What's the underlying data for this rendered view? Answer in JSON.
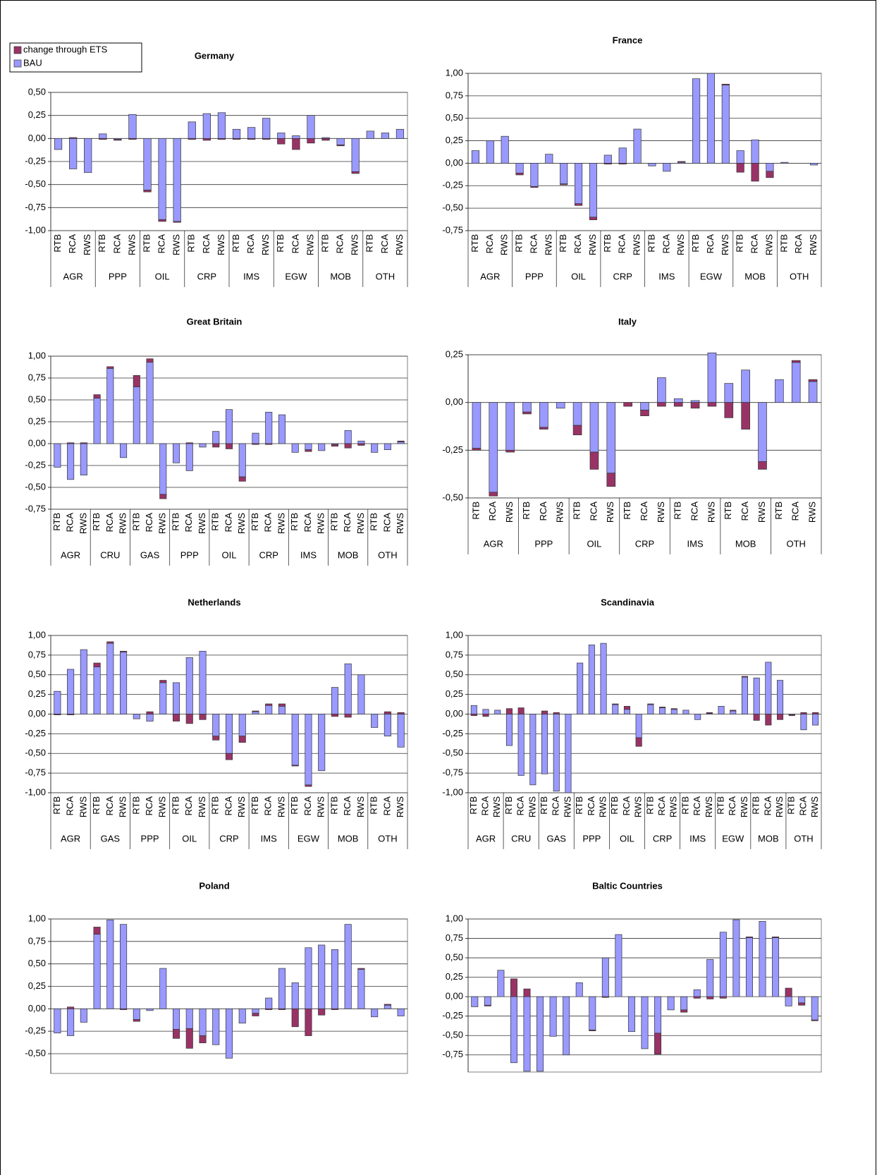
{
  "chart_data": [
    {
      "type": "bar",
      "stacked": true,
      "title": "Germany",
      "categories": [
        "RTB",
        "RCA",
        "RWS",
        "RTB",
        "RCA",
        "RWS",
        "RTB",
        "RCA",
        "RWS",
        "RTB",
        "RCA",
        "RWS",
        "RTB",
        "RCA",
        "RWS",
        "RTB",
        "RCA",
        "RWS",
        "RTB",
        "RCA",
        "RWS",
        "RTB",
        "RCA",
        "RWS"
      ],
      "groups": [
        "AGR",
        "PPP",
        "OIL",
        "CRP",
        "IMS",
        "EGW",
        "MOB",
        "OTH"
      ],
      "series": [
        {
          "name": "BAU",
          "color": "#9999ff",
          "values": [
            -0.12,
            -0.33,
            -0.37,
            0.05,
            -0.01,
            0.26,
            -0.56,
            -0.88,
            -0.9,
            0.18,
            0.27,
            0.28,
            0.1,
            0.12,
            0.22,
            0.06,
            0.03,
            0.25,
            0.01,
            -0.07,
            -0.36,
            0.08,
            0.06,
            0.1
          ]
        },
        {
          "name": "change through ETS",
          "color": "#993366",
          "values": [
            0,
            0.01,
            0,
            -0.01,
            -0.01,
            -0.01,
            -0.02,
            -0.02,
            -0.01,
            -0.01,
            -0.02,
            -0.01,
            -0.01,
            -0.01,
            -0.01,
            -0.06,
            -0.12,
            -0.05,
            -0.02,
            -0.01,
            -0.02,
            0,
            0,
            0
          ]
        }
      ],
      "ylim": [
        -1,
        0.5
      ],
      "yticks": [
        {
          "value": 0.5,
          "label": "0,50"
        },
        {
          "value": 0.25,
          "label": "0,25"
        },
        {
          "value": 0,
          "label": "0,00"
        },
        {
          "value": -0.25,
          "label": "-0,25"
        },
        {
          "value": -0.5,
          "label": "-0,50"
        },
        {
          "value": -0.75,
          "label": "-0,75"
        },
        {
          "value": -1,
          "label": "-1,00"
        }
      ],
      "grid": true,
      "legend": "top-left"
    },
    {
      "type": "bar",
      "stacked": true,
      "title": "France",
      "categories": [
        "RTB",
        "RCA",
        "RWS",
        "RTB",
        "RCA",
        "RWS",
        "RTB",
        "RCA",
        "RWS",
        "RTB",
        "RCA",
        "RWS",
        "RTB",
        "RCA",
        "RWS",
        "RTB",
        "RCA",
        "RWS",
        "RTB",
        "RCA",
        "RWS",
        "RTB",
        "RCA",
        "RWS"
      ],
      "groups": [
        "AGR",
        "PPP",
        "OIL",
        "CRP",
        "IMS",
        "EGW",
        "MOB",
        "OTH"
      ],
      "series": [
        {
          "color": "#9999ff",
          "values": [
            0.14,
            0.25,
            0.3,
            -0.11,
            -0.26,
            0.1,
            -0.23,
            -0.45,
            -0.6,
            0.09,
            0.17,
            0.38,
            -0.03,
            -0.09,
            0.01,
            0.94,
            1.0,
            0.87,
            0.14,
            0.26,
            -0.09,
            0.01,
            0.0,
            -0.02
          ]
        },
        {
          "color": "#993366",
          "values": [
            0,
            0,
            0,
            -0.02,
            -0.01,
            0,
            -0.01,
            -0.02,
            -0.03,
            -0.01,
            -0.01,
            0,
            0,
            0,
            0.01,
            0,
            0,
            0.01,
            -0.1,
            -0.2,
            -0.07,
            0,
            0,
            0
          ]
        }
      ],
      "ylim": [
        -0.75,
        1
      ],
      "yticks": [
        {
          "value": 1,
          "label": "1,00"
        },
        {
          "value": 0.75,
          "label": "0,75"
        },
        {
          "value": 0.5,
          "label": "0,50"
        },
        {
          "value": 0.25,
          "label": "0,25"
        },
        {
          "value": 0,
          "label": "0,00"
        },
        {
          "value": -0.25,
          "label": "-0,25"
        },
        {
          "value": -0.5,
          "label": "-0,50"
        },
        {
          "value": -0.75,
          "label": "-0,75"
        }
      ],
      "grid": true
    },
    {
      "type": "bar",
      "stacked": true,
      "title": "Great Britain",
      "categories": [
        "RTB",
        "RCA",
        "RWS",
        "RTB",
        "RCA",
        "RWS",
        "RTB",
        "RCA",
        "RWS",
        "RTB",
        "RCA",
        "RWS",
        "RTB",
        "RCA",
        "RWS",
        "RTB",
        "RCA",
        "RWS",
        "RTB",
        "RCA",
        "RWS",
        "RTB",
        "RCA",
        "RWS",
        "RTB",
        "RCA",
        "RWS"
      ],
      "groups": [
        "AGR",
        "CRU",
        "GAS",
        "PPP",
        "OIL",
        "CRP",
        "IMS",
        "MOB",
        "OTH"
      ],
      "series": [
        {
          "color": "#9999ff",
          "values": [
            -0.27,
            -0.41,
            -0.36,
            0.52,
            0.86,
            -0.16,
            0.65,
            0.93,
            -0.58,
            -0.22,
            -0.31,
            -0.04,
            0.14,
            0.39,
            -0.38,
            0.12,
            0.36,
            0.33,
            -0.1,
            -0.07,
            -0.08,
            -0.01,
            0.15,
            0.03,
            -0.1,
            -0.07,
            0.02
          ]
        },
        {
          "color": "#993366",
          "values": [
            0,
            0.01,
            0.01,
            0.04,
            0.02,
            0,
            0.13,
            0.04,
            -0.05,
            0,
            0.01,
            0,
            -0.04,
            -0.06,
            -0.05,
            -0.01,
            -0.01,
            0,
            0,
            -0.02,
            0,
            -0.02,
            -0.05,
            -0.02,
            0,
            0,
            0.01
          ]
        }
      ],
      "ylim": [
        -0.75,
        1
      ],
      "yticks": [
        {
          "value": 1,
          "label": "1,00"
        },
        {
          "value": 0.75,
          "label": "0,75"
        },
        {
          "value": 0.5,
          "label": "0,50"
        },
        {
          "value": 0.25,
          "label": "0,25"
        },
        {
          "value": 0,
          "label": "0,00"
        },
        {
          "value": -0.25,
          "label": "-0,25"
        },
        {
          "value": -0.5,
          "label": "-0,50"
        },
        {
          "value": -0.75,
          "label": "-0,75"
        }
      ],
      "grid": true
    },
    {
      "type": "bar",
      "stacked": true,
      "title": "Italy",
      "categories": [
        "RTB",
        "RCA",
        "RWS",
        "RTB",
        "RCA",
        "RWS",
        "RTB",
        "RCA",
        "RWS",
        "RTB",
        "RCA",
        "RWS",
        "RTB",
        "RCA",
        "RWS",
        "RTB",
        "RCA",
        "RWS",
        "RTB",
        "RCA",
        "RWS"
      ],
      "groups": [
        "AGR",
        "PPP",
        "OIL",
        "CRP",
        "IMS",
        "MOB",
        "OTH"
      ],
      "series": [
        {
          "color": "#9999ff",
          "values": [
            -0.24,
            -0.47,
            -0.25,
            -0.05,
            -0.13,
            -0.03,
            -0.12,
            -0.26,
            -0.37,
            0.0,
            -0.04,
            0.13,
            0.02,
            0.01,
            0.26,
            0.1,
            0.17,
            -0.31,
            0.12,
            0.21,
            0.11
          ]
        },
        {
          "color": "#993366",
          "values": [
            -0.01,
            -0.02,
            -0.01,
            -0.01,
            -0.01,
            0,
            -0.05,
            -0.09,
            -0.07,
            -0.02,
            -0.03,
            -0.02,
            -0.02,
            -0.03,
            -0.02,
            -0.08,
            -0.14,
            -0.04,
            0,
            0.01,
            0.01
          ]
        }
      ],
      "ylim": [
        -0.5,
        0.25
      ],
      "yticks": [
        {
          "value": 0.25,
          "label": "0,25"
        },
        {
          "value": 0,
          "label": "0,00"
        },
        {
          "value": -0.25,
          "label": "-0,25"
        },
        {
          "value": -0.5,
          "label": "-0,50"
        }
      ],
      "grid": true
    },
    {
      "type": "bar",
      "stacked": true,
      "title": "Netherlands",
      "categories": [
        "RTB",
        "RCA",
        "RWS",
        "RTB",
        "RCA",
        "RWS",
        "RTB",
        "RCA",
        "RWS",
        "RTB",
        "RCA",
        "RWS",
        "RTB",
        "RCA",
        "RWS",
        "RTB",
        "RCA",
        "RWS",
        "RTB",
        "RCA",
        "RWS",
        "RTB",
        "RCA",
        "RWS",
        "RTB",
        "RCA",
        "RWS"
      ],
      "groups": [
        "AGR",
        "GAS",
        "PPP",
        "OIL",
        "CRP",
        "IMS",
        "EGW",
        "MOB",
        "OTH"
      ],
      "series": [
        {
          "color": "#9999ff",
          "values": [
            0.29,
            0.57,
            0.82,
            0.6,
            0.9,
            0.79,
            -0.06,
            -0.09,
            0.4,
            0.4,
            0.72,
            0.8,
            -0.28,
            -0.5,
            -0.28,
            0.03,
            0.11,
            0.1,
            -0.65,
            -0.9,
            -0.72,
            0.34,
            0.64,
            0.5,
            -0.17,
            -0.28,
            -0.42
          ]
        },
        {
          "color": "#993366",
          "values": [
            -0.01,
            -0.01,
            0,
            0.05,
            0.02,
            0.01,
            0,
            0.03,
            0.03,
            -0.09,
            -0.12,
            -0.07,
            -0.05,
            -0.08,
            -0.08,
            0.01,
            0.02,
            0.03,
            -0.01,
            -0.02,
            0,
            -0.03,
            -0.04,
            0,
            0,
            0.03,
            0.02
          ]
        }
      ],
      "ylim": [
        -1,
        1
      ],
      "yticks": [
        {
          "value": 1,
          "label": "1,00"
        },
        {
          "value": 0.75,
          "label": "0,75"
        },
        {
          "value": 0.5,
          "label": "0,50"
        },
        {
          "value": 0.25,
          "label": "0,25"
        },
        {
          "value": 0,
          "label": "0,00"
        },
        {
          "value": -0.25,
          "label": "-0,25"
        },
        {
          "value": -0.5,
          "label": "-0,50"
        },
        {
          "value": -0.75,
          "label": "-0,75"
        },
        {
          "value": -1,
          "label": "-1,00"
        }
      ],
      "grid": true
    },
    {
      "type": "bar",
      "stacked": true,
      "title": "Scandinavia",
      "categories": [
        "RTB",
        "RCA",
        "RWS",
        "RTB",
        "RCA",
        "RWS",
        "RTB",
        "RCA",
        "RWS",
        "RTB",
        "RCA",
        "RWS",
        "RTB",
        "RCA",
        "RWS",
        "RTB",
        "RCA",
        "RWS",
        "RTB",
        "RCA",
        "RWS",
        "RTB",
        "RCA",
        "RWS",
        "RTB",
        "RCA",
        "RWS",
        "RTB",
        "RCA",
        "RWS"
      ],
      "groups": [
        "AGR",
        "CRU",
        "GAS",
        "PPP",
        "OIL",
        "CRP",
        "IMS",
        "EGW",
        "MOB",
        "OTH"
      ],
      "series": [
        {
          "color": "#9999ff",
          "values": [
            0.11,
            0.06,
            0.05,
            -0.4,
            -0.78,
            -0.9,
            -0.76,
            -0.98,
            -1.0,
            0.65,
            0.88,
            0.9,
            0.12,
            0.06,
            -0.3,
            0.12,
            0.08,
            0.06,
            0.05,
            -0.07,
            0.01,
            0.1,
            0.04,
            0.47,
            0.46,
            0.66,
            0.43,
            -0.01,
            -0.2,
            -0.14
          ]
        },
        {
          "color": "#993366",
          "values": [
            -0.02,
            -0.03,
            0,
            0.07,
            0.08,
            0,
            0.04,
            0.02,
            0,
            0,
            0,
            0,
            0.01,
            0.04,
            -0.11,
            0.01,
            0.01,
            0.01,
            0,
            0,
            0.01,
            0,
            0.01,
            0.01,
            -0.08,
            -0.14,
            -0.07,
            -0.01,
            0.02,
            0.02
          ]
        }
      ],
      "ylim": [
        -1,
        1
      ],
      "yticks": [
        {
          "value": 1,
          "label": "1,00"
        },
        {
          "value": 0.75,
          "label": "0,75"
        },
        {
          "value": 0.5,
          "label": "0,50"
        },
        {
          "value": 0.25,
          "label": "0,25"
        },
        {
          "value": 0,
          "label": "0,00"
        },
        {
          "value": -0.25,
          "label": "-0,25"
        },
        {
          "value": -0.5,
          "label": "-0,50"
        },
        {
          "value": -0.75,
          "label": "-0,75"
        },
        {
          "value": -1,
          "label": "-1,00"
        }
      ],
      "grid": true
    },
    {
      "type": "bar",
      "stacked": true,
      "title": "Poland",
      "series": [
        {
          "color": "#9999ff",
          "values": [
            -0.27,
            -0.3,
            -0.15,
            0.83,
            0.99,
            0.94,
            -0.12,
            -0.02,
            0.45,
            -0.23,
            -0.22,
            -0.3,
            -0.4,
            -0.55,
            -0.16,
            -0.05,
            0.12,
            0.45,
            0.29,
            0.68,
            0.71,
            0.66,
            0.94,
            0.44,
            -0.09,
            0.04,
            -0.08
          ]
        },
        {
          "color": "#993366",
          "values": [
            0,
            0.02,
            0,
            0.08,
            0,
            -0.01,
            -0.02,
            0,
            0,
            -0.1,
            -0.22,
            -0.08,
            0,
            0,
            0,
            -0.03,
            -0.01,
            -0.01,
            -0.2,
            -0.3,
            -0.07,
            -0.01,
            0,
            0.01,
            0,
            0.01,
            0
          ]
        }
      ],
      "ylim": [
        -0.72,
        1
      ],
      "yticks": [
        {
          "value": 1,
          "label": "1,00"
        },
        {
          "value": 0.75,
          "label": "0,75"
        },
        {
          "value": 0.5,
          "label": "0,50"
        },
        {
          "value": 0.25,
          "label": "0,25"
        },
        {
          "value": 0,
          "label": "0,00"
        },
        {
          "value": -0.25,
          "label": "-0,25"
        },
        {
          "value": -0.5,
          "label": "-0,50"
        }
      ],
      "grid": true
    },
    {
      "type": "bar",
      "stacked": true,
      "title": "Baltic Countries",
      "series": [
        {
          "color": "#9999ff",
          "values": [
            -0.13,
            -0.11,
            0.34,
            -0.85,
            -0.96,
            -0.96,
            -0.51,
            -0.75,
            0.18,
            -0.43,
            0.5,
            0.8,
            -0.45,
            -0.67,
            -0.47,
            -0.17,
            -0.17,
            0.09,
            0.48,
            0.83,
            0.99,
            0.76,
            0.97,
            0.76,
            -0.12,
            -0.08,
            -0.3
          ]
        },
        {
          "color": "#993366",
          "values": [
            0,
            -0.01,
            0,
            0.23,
            0.1,
            0,
            0,
            0,
            0,
            -0.01,
            -0.01,
            0,
            0,
            0,
            -0.27,
            0,
            -0.03,
            -0.02,
            -0.03,
            -0.02,
            0,
            0.01,
            0,
            0.01,
            0.11,
            -0.03,
            -0.01
          ]
        }
      ],
      "ylim": [
        -0.97,
        1
      ],
      "yticks": [
        {
          "value": 1,
          "label": "1,00"
        },
        {
          "value": 0.75,
          "label": "0,75"
        },
        {
          "value": 0.5,
          "label": "0,50"
        },
        {
          "value": 0.25,
          "label": "0,25"
        },
        {
          "value": 0,
          "label": "0,00"
        },
        {
          "value": -0.25,
          "label": "-0,25"
        },
        {
          "value": -0.5,
          "label": "-0,50"
        },
        {
          "value": -0.75,
          "label": "-0,75"
        }
      ],
      "grid": true
    }
  ]
}
